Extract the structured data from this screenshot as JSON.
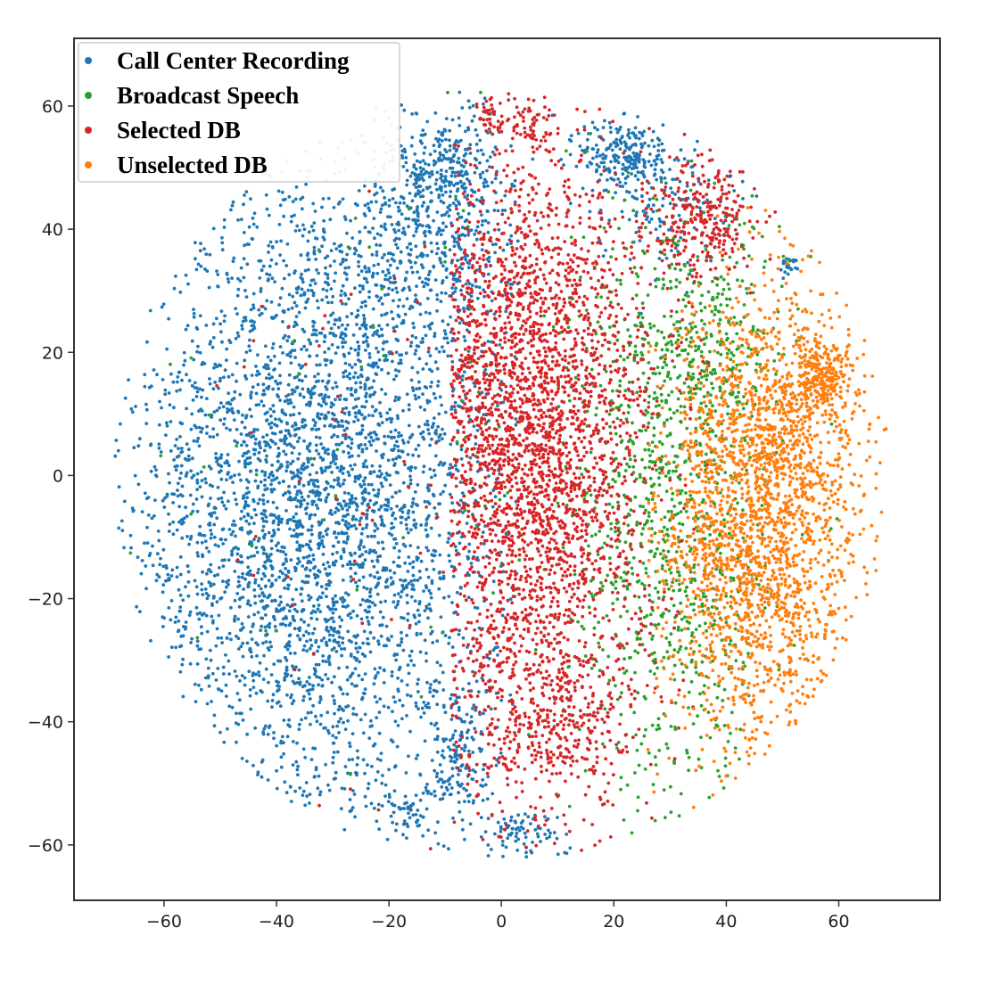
{
  "chart_data": {
    "type": "scatter",
    "title": "",
    "xlabel": "",
    "ylabel": "",
    "xlim": [
      -76,
      78
    ],
    "ylim": [
      -69,
      71
    ],
    "x_ticks": [
      -60,
      -40,
      -20,
      0,
      20,
      40,
      60
    ],
    "y_ticks": [
      60,
      40,
      20,
      0,
      -20,
      -40,
      -60
    ],
    "x_tick_labels": [
      "−60",
      "−40",
      "−20",
      "0",
      "20",
      "40",
      "60"
    ],
    "y_tick_labels": [
      "60",
      "40",
      "20",
      "0",
      "−20",
      "−40",
      "−60"
    ],
    "grid": false,
    "legend_position": "top-left",
    "series": [
      {
        "name": "Call Center Recording",
        "color": "#1f77b4",
        "description_of_distribution": "dense cloud on the left half, x from about -70 to 0, y from about -60 to 60, with sub-clusters near (-10,50), (-20,35) and (30,45)",
        "clusters": [
          {
            "cx": -33,
            "cy": -5,
            "sx": 17,
            "sy": 27,
            "n": 4200
          },
          {
            "cx": -12,
            "cy": 40,
            "sx": 8,
            "sy": 10,
            "n": 500
          },
          {
            "cx": -10,
            "cy": 50,
            "sx": 4,
            "sy": 4,
            "n": 180
          },
          {
            "cx": 22,
            "cy": 52,
            "sx": 4,
            "sy": 3,
            "n": 220
          },
          {
            "cx": 29,
            "cy": 44,
            "sx": 6,
            "sy": 5,
            "n": 150
          },
          {
            "cx": -8,
            "cy": -45,
            "sx": 3,
            "sy": 5,
            "n": 150
          },
          {
            "cx": 3,
            "cy": -58,
            "sx": 4,
            "sy": 2,
            "n": 80
          },
          {
            "cx": -17,
            "cy": -55,
            "sx": 2,
            "sy": 2,
            "n": 40
          },
          {
            "cx": 51,
            "cy": 34,
            "sx": 0.8,
            "sy": 0.7,
            "n": 25
          }
        ]
      },
      {
        "name": "Broadcast Speech",
        "color": "#2ca02c",
        "description_of_distribution": "sparse band between x of about 15 and 50, mixed with the selected and unselected clouds",
        "clusters": [
          {
            "cx": 30,
            "cy": -5,
            "sx": 9,
            "sy": 26,
            "n": 1100
          },
          {
            "cx": 38,
            "cy": 20,
            "sx": 6,
            "sy": 8,
            "n": 200
          },
          {
            "cx": -20,
            "cy": 20,
            "sx": 20,
            "sy": 30,
            "n": 80
          }
        ]
      },
      {
        "name": "Selected DB",
        "color": "#d62728",
        "description_of_distribution": "dense cloud in the middle, x from about -8 to 28, y from about -55 to 60, plus a cluster near (35,42)",
        "clusters": [
          {
            "cx": 6,
            "cy": 0,
            "sx": 10,
            "sy": 24,
            "n": 2800
          },
          {
            "cx": 4,
            "cy": 25,
            "sx": 12,
            "sy": 12,
            "n": 600
          },
          {
            "cx": 36,
            "cy": 42,
            "sx": 5,
            "sy": 5,
            "n": 300
          },
          {
            "cx": 5,
            "cy": 57,
            "sx": 2,
            "sy": 2,
            "n": 60
          },
          {
            "cx": -2,
            "cy": 58,
            "sx": 1.5,
            "sy": 1.5,
            "n": 40
          },
          {
            "cx": 10,
            "cy": -40,
            "sx": 8,
            "sy": 6,
            "n": 300
          },
          {
            "cx": -20,
            "cy": 0,
            "sx": 20,
            "sy": 30,
            "n": 80
          }
        ]
      },
      {
        "name": "Unselected DB",
        "color": "#ff7f0e",
        "description_of_distribution": "cloud on the right, x from about 27 to 70, y from about -45 to 35, with a dense knot near (57,17)",
        "clusters": [
          {
            "cx": 45,
            "cy": -10,
            "sx": 9,
            "sy": 18,
            "n": 2100
          },
          {
            "cx": 57,
            "cy": 16,
            "sx": 2.5,
            "sy": 3,
            "n": 220
          },
          {
            "cx": 52,
            "cy": 10,
            "sx": 7,
            "sy": 12,
            "n": 400
          }
        ]
      }
    ]
  }
}
